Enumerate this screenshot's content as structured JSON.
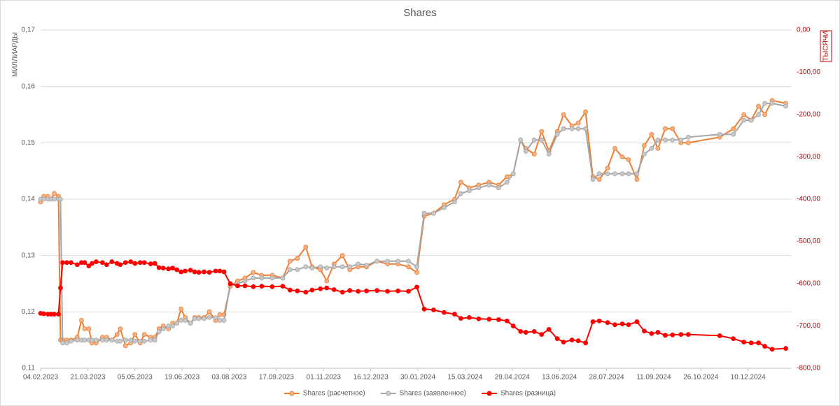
{
  "chart_data": {
    "type": "line",
    "title": "Shares",
    "y_label": "МИЛЛИАРДЫ",
    "y2_label": "ТЫСЯЧИ",
    "x": [
      "2023-02-04",
      "2023-02-07",
      "2023-02-11",
      "2023-02-14",
      "2023-02-17",
      "2023-02-21",
      "2023-02-23",
      "2023-02-25",
      "2023-03-01",
      "2023-03-05",
      "2023-03-11",
      "2023-03-15",
      "2023-03-18",
      "2023-03-22",
      "2023-03-25",
      "2023-03-29",
      "2023-04-04",
      "2023-04-08",
      "2023-04-13",
      "2023-04-18",
      "2023-04-21",
      "2023-04-26",
      "2023-05-01",
      "2023-05-05",
      "2023-05-10",
      "2023-05-14",
      "2023-05-20",
      "2023-05-24",
      "2023-05-28",
      "2023-06-01",
      "2023-06-06",
      "2023-06-10",
      "2023-06-14",
      "2023-06-18",
      "2023-06-22",
      "2023-06-27",
      "2023-07-01",
      "2023-07-05",
      "2023-07-10",
      "2023-07-15",
      "2023-07-21",
      "2023-07-25",
      "2023-07-29",
      "2023-08-04",
      "2023-08-11",
      "2023-08-18",
      "2023-08-26",
      "2023-09-03",
      "2023-09-13",
      "2023-09-23",
      "2023-09-30",
      "2023-10-07",
      "2023-10-15",
      "2023-10-21",
      "2023-10-29",
      "2023-11-04",
      "2023-11-11",
      "2023-11-19",
      "2023-11-26",
      "2023-12-04",
      "2023-12-12",
      "2023-12-22",
      "2024-01-01",
      "2024-01-11",
      "2024-01-21",
      "2024-01-29",
      "2024-02-05",
      "2024-02-14",
      "2024-02-24",
      "2024-03-05",
      "2024-03-11",
      "2024-03-19",
      "2024-03-28",
      "2024-04-07",
      "2024-04-16",
      "2024-04-24",
      "2024-04-30",
      "2024-05-07",
      "2024-05-12",
      "2024-05-20",
      "2024-05-27",
      "2024-06-03",
      "2024-06-11",
      "2024-06-17",
      "2024-06-25",
      "2024-07-01",
      "2024-07-08",
      "2024-07-15",
      "2024-07-21",
      "2024-07-29",
      "2024-08-05",
      "2024-08-12",
      "2024-08-18",
      "2024-08-26",
      "2024-09-02",
      "2024-09-09",
      "2024-09-15",
      "2024-09-22",
      "2024-09-29",
      "2024-10-07",
      "2024-10-14",
      "2024-11-13",
      "2024-11-26",
      "2024-12-06",
      "2024-12-13",
      "2024-12-20",
      "2024-12-26",
      "2025-01-02",
      "2025-01-15"
    ],
    "xlim": [
      "2023-02-04",
      "2025-01-20"
    ],
    "xticks": [
      {
        "value": "2023-02-04",
        "label": "04.02.2023"
      },
      {
        "value": "2023-03-21",
        "label": "21.03.2023"
      },
      {
        "value": "2023-05-05",
        "label": "05.05.2023"
      },
      {
        "value": "2023-06-19",
        "label": "19.06.2023"
      },
      {
        "value": "2023-08-03",
        "label": "03.08.2023"
      },
      {
        "value": "2023-09-17",
        "label": "17.09.2023"
      },
      {
        "value": "2023-11-01",
        "label": "01.11.2023"
      },
      {
        "value": "2023-12-16",
        "label": "16.12.2023"
      },
      {
        "value": "2024-01-30",
        "label": "30.01.2024"
      },
      {
        "value": "2024-03-15",
        "label": "15.03.2024"
      },
      {
        "value": "2024-04-29",
        "label": "29.04.2024"
      },
      {
        "value": "2024-06-13",
        "label": "13.06.2024"
      },
      {
        "value": "2024-07-28",
        "label": "28.07.2024"
      },
      {
        "value": "2024-09-11",
        "label": "11.09.2024"
      },
      {
        "value": "2024-10-26",
        "label": "26.10.2024"
      },
      {
        "value": "2024-12-10",
        "label": "10.12.2024"
      }
    ],
    "ylim": [
      0.11,
      0.17
    ],
    "yticks": [
      {
        "value": 0.11,
        "label": "0,11"
      },
      {
        "value": 0.12,
        "label": "0,12"
      },
      {
        "value": 0.13,
        "label": "0,13"
      },
      {
        "value": 0.14,
        "label": "0,14"
      },
      {
        "value": 0.15,
        "label": "0,15"
      },
      {
        "value": 0.16,
        "label": "0,16"
      },
      {
        "value": 0.17,
        "label": "0,17"
      }
    ],
    "y2lim": [
      -800,
      0
    ],
    "y2ticks": [
      {
        "value": -800,
        "label": "-800,00"
      },
      {
        "value": -700,
        "label": "-700,00"
      },
      {
        "value": -600,
        "label": "-600,00"
      },
      {
        "value": -500,
        "label": "-500,00"
      },
      {
        "value": -400,
        "label": "-400,00"
      },
      {
        "value": -300,
        "label": "-300,00"
      },
      {
        "value": -200,
        "label": "-200,00"
      },
      {
        "value": -100,
        "label": "-100,00"
      },
      {
        "value": 0,
        "label": "0,00"
      }
    ],
    "grid": true,
    "legend": "bottom",
    "series": [
      {
        "name": "Shares (расчетное)",
        "color": "#ED7D31",
        "marker_color": "#F4B183",
        "values": [
          0.1395,
          0.1405,
          0.1405,
          0.14,
          0.141,
          0.1405,
          0.115,
          0.115,
          0.115,
          0.115,
          0.1155,
          0.1185,
          0.117,
          0.117,
          0.1145,
          0.1145,
          0.1155,
          0.1155,
          0.115,
          0.116,
          0.117,
          0.114,
          0.1145,
          0.116,
          0.1145,
          0.116,
          0.1155,
          0.1155,
          0.117,
          0.1175,
          0.117,
          0.118,
          0.118,
          0.1205,
          0.119,
          0.118,
          0.119,
          0.119,
          0.119,
          0.12,
          0.1185,
          0.1195,
          0.1195,
          0.1245,
          0.1255,
          0.126,
          0.127,
          0.1265,
          0.1265,
          0.126,
          0.129,
          0.1295,
          0.1315,
          0.128,
          0.1275,
          0.1255,
          0.1285,
          0.13,
          0.1275,
          0.128,
          0.128,
          0.129,
          0.1285,
          0.1285,
          0.128,
          0.127,
          0.137,
          0.1375,
          0.139,
          0.14,
          0.143,
          0.142,
          0.1425,
          0.143,
          0.1425,
          0.144,
          0.1445,
          0.1505,
          0.149,
          0.148,
          0.152,
          0.1485,
          0.152,
          0.155,
          0.153,
          0.1535,
          0.1555,
          0.144,
          0.1435,
          0.1455,
          0.149,
          0.1475,
          0.147,
          0.1435,
          0.1495,
          0.1515,
          0.149,
          0.1525,
          0.1525,
          0.15,
          0.15,
          0.151,
          0.1525,
          0.155,
          0.154,
          0.1565,
          0.155,
          0.1575,
          0.157
        ]
      },
      {
        "name": "Shares (заявленное)",
        "color": "#A5A5A5",
        "marker_color": "#C9C9C9",
        "values": [
          0.14,
          0.14,
          0.14,
          0.14,
          0.14,
          0.14,
          0.14,
          0.1145,
          0.1145,
          0.1148,
          0.115,
          0.115,
          0.115,
          0.115,
          0.115,
          0.115,
          0.115,
          0.115,
          0.115,
          0.1148,
          0.1148,
          0.115,
          0.115,
          0.1148,
          0.1148,
          0.1148,
          0.115,
          0.115,
          0.1165,
          0.117,
          0.1175,
          0.1175,
          0.118,
          0.1185,
          0.1185,
          0.118,
          0.1188,
          0.1188,
          0.1188,
          0.119,
          0.119,
          0.1185,
          0.1185,
          0.125,
          0.125,
          0.1255,
          0.126,
          0.126,
          0.126,
          0.126,
          0.1275,
          0.1275,
          0.128,
          0.1278,
          0.128,
          0.1278,
          0.128,
          0.128,
          0.128,
          0.1285,
          0.1283,
          0.129,
          0.129,
          0.129,
          0.129,
          0.128,
          0.1375,
          0.1375,
          0.1385,
          0.1395,
          0.141,
          0.1415,
          0.142,
          0.1425,
          0.142,
          0.143,
          0.1445,
          0.1505,
          0.1485,
          0.1505,
          0.1505,
          0.148,
          0.1515,
          0.1525,
          0.1525,
          0.1525,
          0.1525,
          0.1435,
          0.1445,
          0.1445,
          0.1445,
          0.1445,
          0.1445,
          0.1445,
          0.148,
          0.149,
          0.1505,
          0.1505,
          0.1505,
          0.1505,
          0.151,
          0.1515,
          0.1515,
          0.154,
          0.154,
          0.155,
          0.157,
          0.157,
          0.1565
        ]
      },
      {
        "name": "Shares (разница)",
        "color": "#FF0000",
        "marker_color": "#FF0000",
        "axis": "y2",
        "values": [
          -670,
          -671,
          -672,
          -672,
          -672,
          -672,
          -610,
          -550,
          -550,
          -550,
          -555,
          -550,
          -550,
          -558,
          -552,
          -548,
          -550,
          -555,
          -548,
          -552,
          -555,
          -550,
          -548,
          -552,
          -550,
          -550,
          -553,
          -552,
          -562,
          -563,
          -565,
          -563,
          -567,
          -572,
          -570,
          -568,
          -572,
          -573,
          -572,
          -573,
          -570,
          -570,
          -572,
          -600,
          -605,
          -605,
          -607,
          -606,
          -607,
          -606,
          -615,
          -617,
          -620,
          -615,
          -612,
          -610,
          -614,
          -620,
          -616,
          -618,
          -617,
          -616,
          -618,
          -617,
          -618,
          -608,
          -660,
          -662,
          -668,
          -672,
          -682,
          -680,
          -683,
          -684,
          -685,
          -688,
          -700,
          -713,
          -715,
          -713,
          -720,
          -708,
          -730,
          -738,
          -733,
          -735,
          -740,
          -690,
          -688,
          -692,
          -697,
          -695,
          -697,
          -690,
          -712,
          -718,
          -715,
          -722,
          -721,
          -720,
          -720,
          -723,
          -730,
          -738,
          -740,
          -740,
          -748,
          -755,
          -753
        ]
      }
    ]
  }
}
